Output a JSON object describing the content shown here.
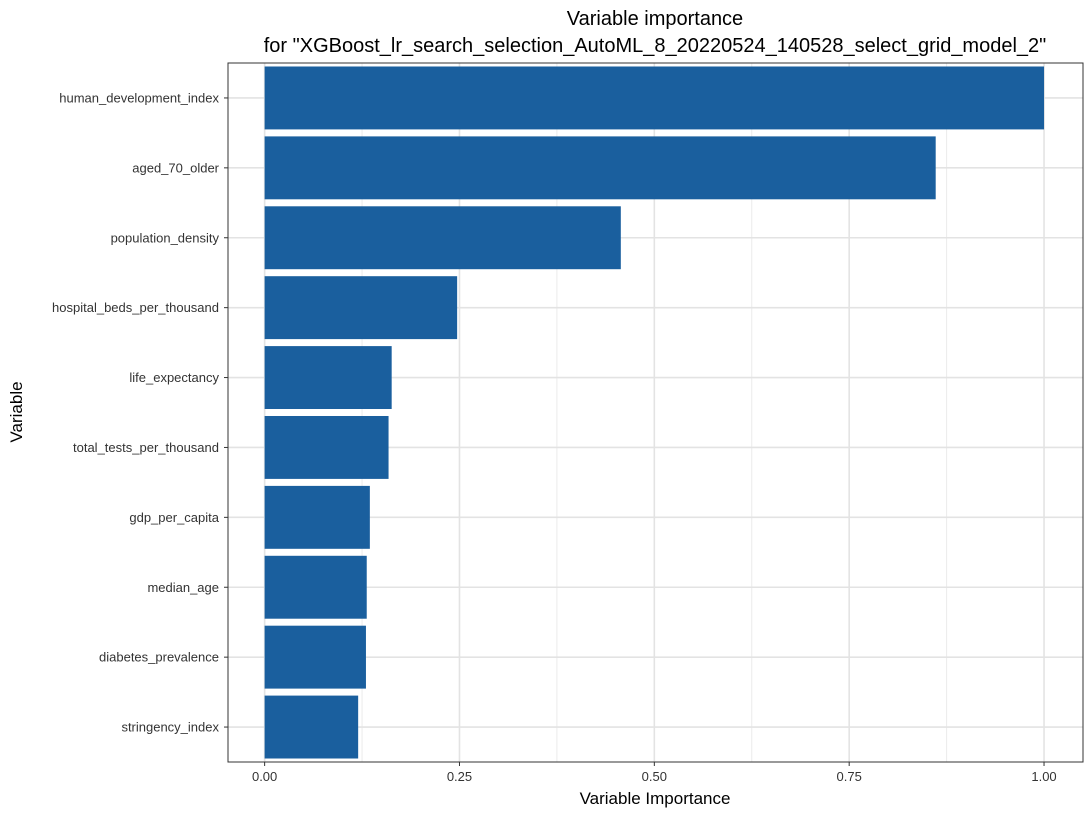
{
  "chart_data": {
    "type": "bar",
    "orientation": "horizontal",
    "title": "Variable importance",
    "subtitle": "for \"XGBoost_lr_search_selection_AutoML_8_20220524_140528_select_grid_model_2\"",
    "xlabel": "Variable Importance",
    "ylabel": "Variable",
    "xlim": [
      -0.047,
      1.05
    ],
    "xticks": [
      0.0,
      0.25,
      0.5,
      0.75,
      1.0
    ],
    "xtick_labels": [
      "0.00",
      "0.25",
      "0.50",
      "0.75",
      "1.00"
    ],
    "categories": [
      "human_development_index",
      "aged_70_older",
      "population_density",
      "hospital_beds_per_thousand",
      "life_expectancy",
      "total_tests_per_thousand",
      "gdp_per_capita",
      "median_age",
      "diabetes_prevalence",
      "stringency_index"
    ],
    "values": [
      1.0,
      0.861,
      0.457,
      0.247,
      0.163,
      0.159,
      0.135,
      0.131,
      0.13,
      0.12
    ],
    "bar_color": "#1a5f9e",
    "grid": true,
    "legend": "none"
  }
}
